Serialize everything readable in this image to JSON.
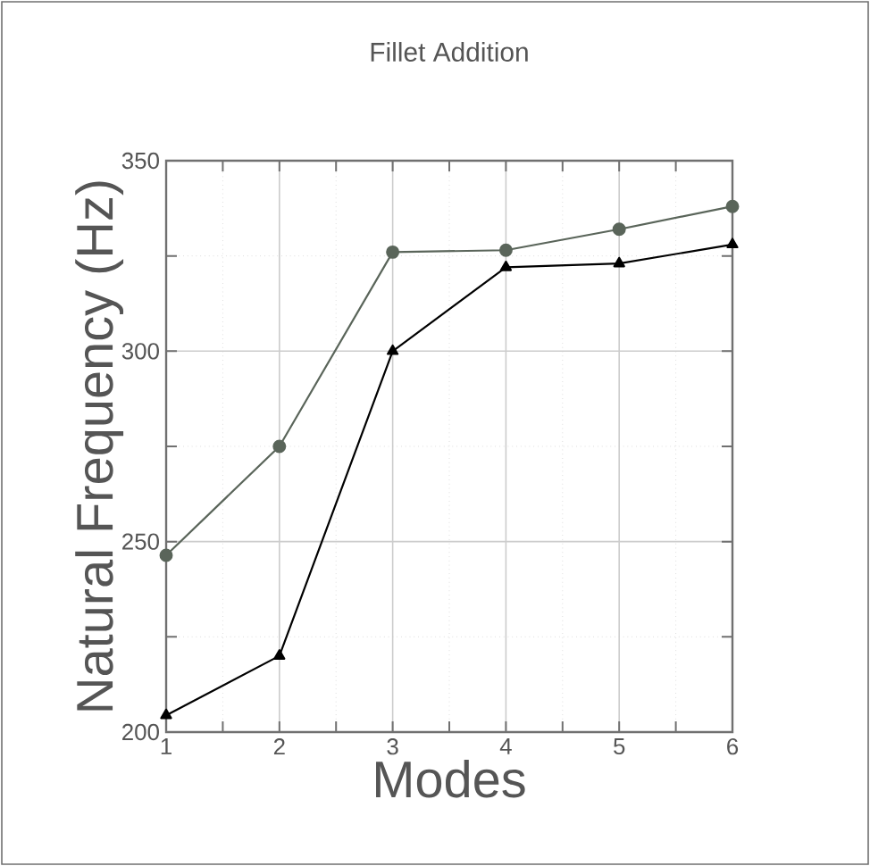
{
  "chart_data": {
    "type": "line",
    "title": "Fillet Addition",
    "xlabel": "Modes",
    "ylabel": "Natural Frequency (Hz)",
    "x": [
      1,
      2,
      3,
      4,
      5,
      6
    ],
    "xlim": [
      1,
      6
    ],
    "xticks": [
      1,
      2,
      3,
      4,
      5,
      6
    ],
    "ylim": [
      200,
      350
    ],
    "yticks": [
      200,
      250,
      300,
      350
    ],
    "grid": true,
    "series": [
      {
        "color": "#5a655a",
        "marker": "circle",
        "values": [
          246.4,
          275,
          326,
          326.5,
          332,
          338
        ]
      },
      {
        "color": "#000000",
        "marker": "triangle",
        "values": [
          204.4,
          220,
          300,
          322,
          323,
          328
        ]
      }
    ]
  }
}
